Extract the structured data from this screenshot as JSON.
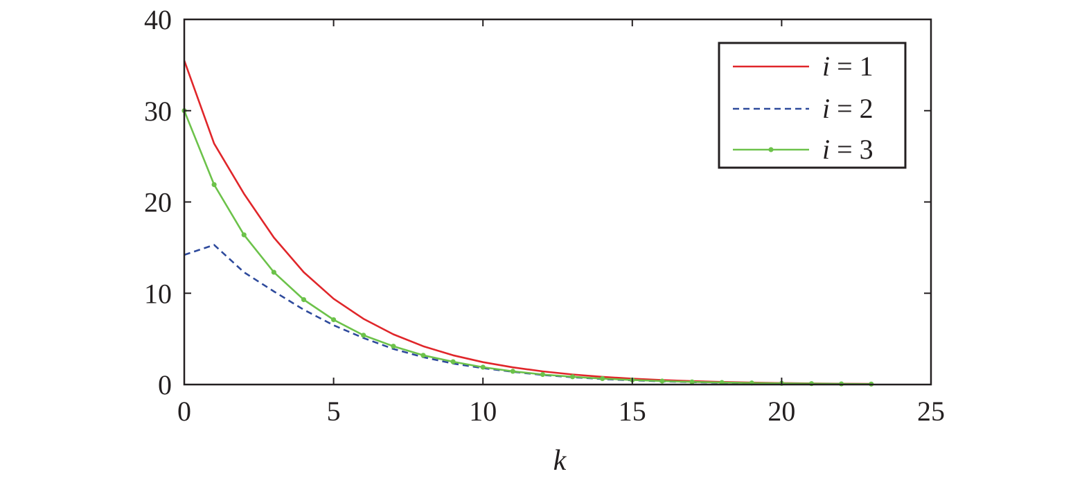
{
  "chart_data": {
    "type": "line",
    "title": "",
    "xlabel": "k",
    "ylabel": "",
    "xlim": [
      0,
      25
    ],
    "ylim": [
      0,
      40
    ],
    "xticks": [
      0,
      5,
      10,
      15,
      20,
      25
    ],
    "yticks": [
      0,
      10,
      20,
      30,
      40
    ],
    "grid": false,
    "legend_position": "top-right",
    "series": [
      {
        "name": "i = 1",
        "var": "i",
        "eq": "=",
        "num": "1",
        "color": "#e0262a",
        "style": "solid",
        "markers": false,
        "x": [
          0,
          1,
          2,
          3,
          4,
          5,
          6,
          7,
          8,
          9,
          10,
          11,
          12,
          13,
          14,
          15,
          16,
          17,
          18,
          19,
          20,
          21,
          22,
          23
        ],
        "y": [
          35.5,
          26.4,
          20.9,
          16.1,
          12.3,
          9.4,
          7.2,
          5.5,
          4.2,
          3.2,
          2.45,
          1.88,
          1.44,
          1.1,
          0.84,
          0.64,
          0.49,
          0.37,
          0.28,
          0.21,
          0.16,
          0.12,
          0.09,
          0.07
        ]
      },
      {
        "name": "i = 2",
        "var": "i",
        "eq": "=",
        "num": "2",
        "color": "#2e4a9c",
        "style": "dashed",
        "markers": false,
        "x": [
          0,
          1,
          2,
          3,
          4,
          5,
          6,
          7,
          8,
          9,
          10,
          11,
          12,
          13,
          14,
          15,
          16,
          17,
          18,
          19,
          20,
          21,
          22,
          23
        ],
        "y": [
          14.2,
          15.3,
          12.3,
          10.2,
          8.2,
          6.5,
          5.1,
          3.9,
          3.0,
          2.3,
          1.8,
          1.4,
          1.05,
          0.8,
          0.6,
          0.46,
          0.35,
          0.26,
          0.2,
          0.15,
          0.11,
          0.08,
          0.06,
          0.04
        ]
      },
      {
        "name": "i = 3",
        "var": "i",
        "eq": "=",
        "num": "3",
        "color": "#6cc24a",
        "style": "solid",
        "markers": true,
        "x": [
          0,
          1,
          2,
          3,
          4,
          5,
          6,
          7,
          8,
          9,
          10,
          11,
          12,
          13,
          14,
          15,
          16,
          17,
          18,
          19,
          20,
          21,
          22,
          23
        ],
        "y": [
          30.0,
          21.9,
          16.4,
          12.3,
          9.3,
          7.1,
          5.4,
          4.2,
          3.2,
          2.5,
          1.9,
          1.45,
          1.1,
          0.85,
          0.65,
          0.5,
          0.38,
          0.29,
          0.22,
          0.17,
          0.13,
          0.1,
          0.07,
          0.05
        ]
      }
    ]
  }
}
